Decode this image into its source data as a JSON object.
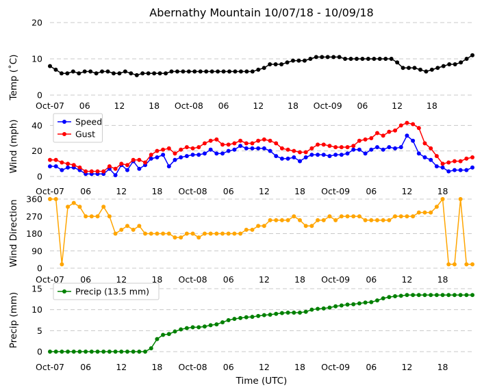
{
  "title": "Abernathy Mountain 10/07/18 - 10/09/18",
  "xlabel": "Time (UTC)",
  "x_tick_labels": [
    "Oct-07",
    "06",
    "12",
    "18",
    "Oct-08",
    "06",
    "12",
    "18",
    "Oct-09",
    "06",
    "12",
    "18"
  ],
  "chart_data": [
    {
      "type": "line",
      "ylabel": "Temp ($^\\circ$C)",
      "ylabel_display": "Temp (˚C)",
      "ylim": [
        0,
        20
      ],
      "yticks": [
        0,
        10,
        20
      ],
      "grid": true,
      "x_hours": "hourly from Oct-07 00:00 UTC",
      "series": [
        {
          "name": "",
          "color": "#000000",
          "values": [
            8.0,
            7.0,
            6.0,
            6.0,
            6.5,
            6.0,
            6.5,
            6.5,
            6.0,
            6.5,
            6.5,
            6.0,
            6.0,
            6.5,
            6.0,
            5.5,
            6.0,
            6.0,
            6.0,
            6.0,
            6.0,
            6.5,
            6.5,
            6.5,
            6.5,
            6.5,
            6.5,
            6.5,
            6.5,
            6.5,
            6.5,
            6.5,
            6.5,
            6.5,
            6.5,
            6.5,
            7.0,
            7.5,
            8.5,
            8.5,
            8.5,
            9.0,
            9.5,
            9.5,
            9.5,
            10.0,
            10.5,
            10.5,
            10.5,
            10.5,
            10.5,
            10.0,
            10.0,
            10.0,
            10.0,
            10.0,
            10.0,
            10.0,
            10.0,
            10.0,
            9.0,
            7.5,
            7.5,
            7.5,
            7.0,
            6.5,
            7.0,
            7.5,
            8.0,
            8.5,
            8.5,
            9.0,
            10.0,
            11.0
          ]
        }
      ]
    },
    {
      "type": "line",
      "ylabel": "Wind (mph)",
      "ylim": [
        0,
        45
      ],
      "yticks": [
        0,
        20,
        40
      ],
      "grid": true,
      "legend": "top-left",
      "series": [
        {
          "name": "Speed",
          "color": "#0000ff",
          "values": [
            8,
            8,
            5,
            7,
            7,
            5,
            2,
            2,
            2,
            2,
            6,
            1,
            9,
            5,
            12,
            6,
            9,
            14,
            15,
            17,
            8,
            13,
            15,
            16,
            17,
            17,
            18,
            21,
            18,
            18,
            20,
            21,
            24,
            22,
            22,
            22,
            22,
            20,
            16,
            14,
            14,
            15,
            12,
            15,
            17,
            17,
            17,
            16,
            17,
            17,
            18,
            21,
            21,
            18,
            21,
            23,
            21,
            23,
            22,
            23,
            32,
            28,
            18,
            15,
            13,
            8,
            7,
            4,
            5,
            5,
            5,
            7
          ]
        },
        {
          "name": "Gust",
          "color": "#ff0000",
          "values": [
            13,
            13,
            11,
            10,
            9,
            7,
            4,
            4,
            4,
            4,
            8,
            6,
            10,
            9,
            13,
            13,
            11,
            17,
            20,
            21,
            22,
            18,
            21,
            23,
            22,
            23,
            26,
            28,
            29,
            25,
            25,
            26,
            28,
            26,
            26,
            28,
            29,
            28,
            26,
            22,
            21,
            20,
            19,
            19,
            22,
            25,
            25,
            24,
            23,
            23,
            23,
            24,
            28,
            29,
            30,
            34,
            32,
            35,
            36,
            40,
            42,
            41,
            38,
            26,
            22,
            16,
            10,
            11,
            12,
            12,
            14,
            15
          ]
        }
      ]
    },
    {
      "type": "line",
      "ylabel": "Wind Direction",
      "ylim": [
        0,
        360
      ],
      "yticks": [
        0,
        90,
        180,
        270,
        360
      ],
      "grid": true,
      "series": [
        {
          "name": "",
          "color": "#ffa500",
          "values": [
            360,
            360,
            20,
            320,
            340,
            320,
            270,
            270,
            270,
            320,
            270,
            180,
            200,
            220,
            200,
            220,
            180,
            180,
            180,
            180,
            180,
            160,
            160,
            180,
            180,
            160,
            180,
            180,
            180,
            180,
            180,
            180,
            180,
            200,
            200,
            220,
            220,
            250,
            250,
            250,
            250,
            270,
            250,
            220,
            220,
            250,
            250,
            270,
            250,
            270,
            270,
            270,
            270,
            250,
            250,
            250,
            250,
            250,
            270,
            270,
            270,
            270,
            290,
            290,
            290,
            320,
            360,
            20,
            20,
            360,
            20,
            20
          ]
        }
      ]
    },
    {
      "type": "line",
      "ylabel": "Precip (mm)",
      "ylim": [
        0,
        15
      ],
      "yticks": [
        0,
        5,
        10,
        15
      ],
      "grid": true,
      "legend": "top-left",
      "series": [
        {
          "name": "Precip (13.5 mm)",
          "color": "#008000",
          "values": [
            0,
            0,
            0,
            0,
            0,
            0,
            0,
            0,
            0,
            0,
            0,
            0,
            0,
            0,
            0,
            0,
            0,
            0.8,
            3.0,
            4.0,
            4.2,
            4.8,
            5.3,
            5.6,
            5.8,
            5.8,
            6.0,
            6.3,
            6.5,
            7.0,
            7.5,
            7.8,
            8.0,
            8.2,
            8.3,
            8.5,
            8.7,
            8.8,
            9.0,
            9.2,
            9.3,
            9.3,
            9.3,
            9.5,
            10.0,
            10.2,
            10.3,
            10.5,
            10.8,
            11.0,
            11.2,
            11.3,
            11.5,
            11.7,
            11.8,
            12.2,
            12.7,
            13.0,
            13.2,
            13.3,
            13.5,
            13.5,
            13.5,
            13.5,
            13.5,
            13.5,
            13.5,
            13.5,
            13.5,
            13.5,
            13.5,
            13.5
          ]
        }
      ]
    }
  ]
}
